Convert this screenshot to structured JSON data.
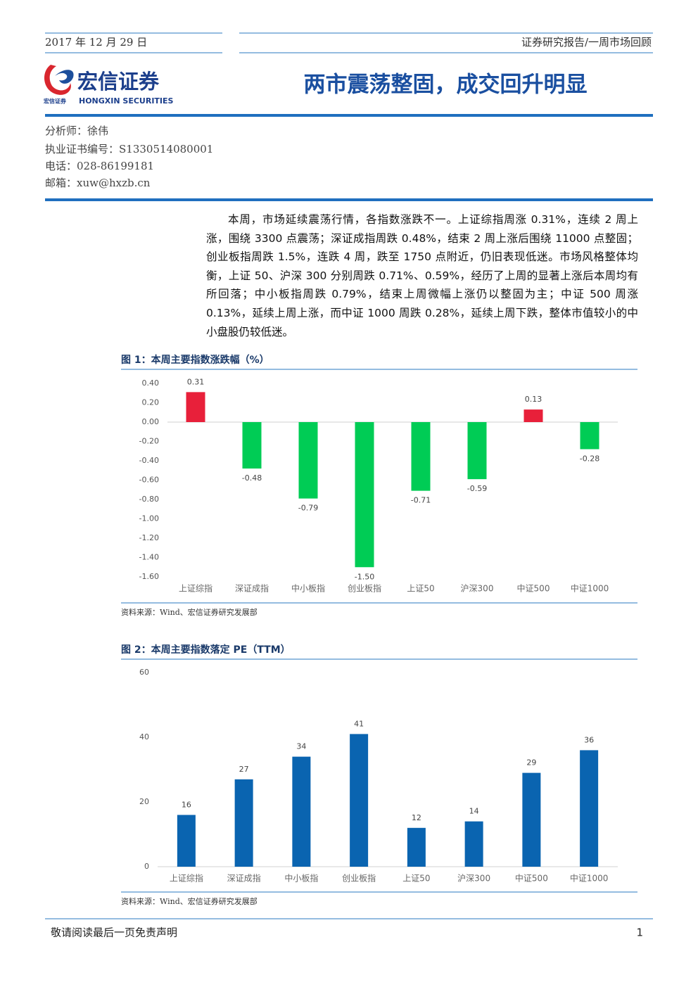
{
  "header": {
    "date": "2017 年 12 月 29 日",
    "report_type": "证券研究报告/一周市场回顾",
    "title": "两市震荡整固，成交回升明显"
  },
  "logo": {
    "name": "宏信证券",
    "name_en": "HONGXIN SECURITIES"
  },
  "analyst": [
    "分析师：徐伟",
    "执业证书编号：S1330514080001",
    "电话：028-86199181",
    "邮箱：xuw@hxzb.cn"
  ],
  "body": "本周，市场延续震荡行情，各指数涨跌不一。上证综指周涨 0.31%，连续 2 周上涨，围绕 3300 点震荡；深证成指周跌 0.48%，结束 2 周上涨后围绕 11000 点整固；创业板指周跌 1.5%，连跌 4 周，跌至 1750 点附近，仍旧表现低迷。市场风格整体均衡，上证 50、沪深 300 分别周跌 0.71%、0.59%，经历了上周的显著上涨后本周均有所回落；中小板指周跌 0.79%，结束上周微幅上涨仍以整固为主；中证 500 周涨 0.13%，延续上周上涨，而中证 1000 周跌 0.28%，延续上周下跌，整体市值较小的中小盘股仍较低迷。",
  "chart_data": [
    {
      "type": "bar",
      "title": "图 1：本周主要指数涨跌幅（%）",
      "source": "资料来源：Wind、宏信证券研究发展部",
      "categories": [
        "上证综指",
        "深证成指",
        "中小板指",
        "创业板指",
        "上证50",
        "沪深300",
        "中证500",
        "中证1000"
      ],
      "values": [
        0.31,
        -0.48,
        -0.79,
        -1.5,
        -0.71,
        -0.59,
        0.13,
        -0.28
      ],
      "value_labels": [
        "0.31",
        "-0.48",
        "-0.79",
        "-1.50",
        "-0.71",
        "-0.59",
        "0.13",
        "-0.28"
      ],
      "positive_color": "#e8203a",
      "negative_color": "#00cc55",
      "ylim": [
        -1.6,
        0.4
      ],
      "yticks": [
        {
          "value": 0.4,
          "label": "0.40"
        },
        {
          "value": 0.2,
          "label": "0.20"
        },
        {
          "value": 0,
          "label": "0.00"
        },
        {
          "value": -0.2,
          "label": "-0.20"
        },
        {
          "value": -0.4,
          "label": "-0.40"
        },
        {
          "value": -0.6,
          "label": "-0.60"
        },
        {
          "value": -0.8,
          "label": "-0.80"
        },
        {
          "value": -1.0,
          "label": "-1.00"
        },
        {
          "value": -1.2,
          "label": "-1.20"
        },
        {
          "value": -1.4,
          "label": "-1.40"
        },
        {
          "value": -1.6,
          "label": "-1.60"
        }
      ]
    },
    {
      "type": "bar",
      "title": "图 2：本周主要指数落定 PE（TTM）",
      "source": "资料来源：Wind、宏信证券研究发展部",
      "categories": [
        "上证综指",
        "深证成指",
        "中小板指",
        "创业板指",
        "上证50",
        "沪深300",
        "中证500",
        "中证1000"
      ],
      "values": [
        16,
        27,
        34,
        41,
        12,
        14,
        29,
        36
      ],
      "color": "#0a64b0",
      "ylim": [
        0,
        60
      ],
      "yticks": [
        0,
        20,
        40,
        60
      ]
    }
  ],
  "footer": {
    "disclaimer": "敬请阅读最后一页免责声明",
    "page": 1
  }
}
